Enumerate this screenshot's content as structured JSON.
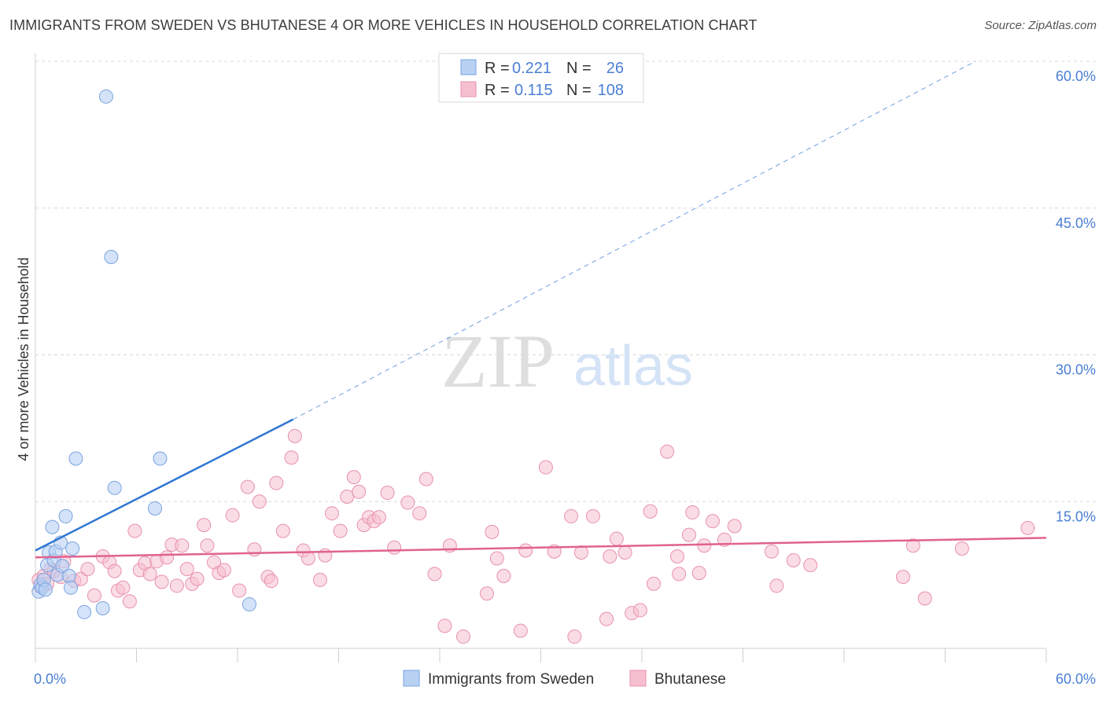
{
  "title": "IMMIGRANTS FROM SWEDEN VS BHUTANESE 4 OR MORE VEHICLES IN HOUSEHOLD CORRELATION CHART",
  "source": "Source: ZipAtlas.com",
  "watermark": {
    "zip": "ZIP",
    "atlas": "atlas"
  },
  "colors": {
    "sweden_fill": "#b8d1f3",
    "sweden_stroke": "#7aa3e0",
    "sweden_line": "#2f76d2",
    "bhutanese_fill": "#f6bfd0",
    "bhutanese_stroke": "#e891ad",
    "bhutanese_line": "#e0628f",
    "accent_text": "#4a7fd4",
    "grid": "#d8d8d8"
  },
  "legend_top": [
    {
      "r_label": "R =",
      "r_value": "0.221",
      "n_label": "N =",
      "n_value": "26"
    },
    {
      "r_label": "R =",
      "r_value": "0.115",
      "n_label": "N =",
      "n_value": "108"
    }
  ],
  "legend_bottom": [
    "Immigrants from Sweden",
    "Bhutanese"
  ],
  "chart_data": {
    "type": "scatter",
    "title": "IMMIGRANTS FROM SWEDEN VS BHUTANESE 4 OR MORE VEHICLES IN HOUSEHOLD CORRELATION CHART",
    "xlabel": "",
    "ylabel": "4 or more Vehicles in Household",
    "xlim": [
      0,
      60
    ],
    "ylim": [
      0,
      60
    ],
    "x_tick_labels": [
      "0.0%",
      "60.0%"
    ],
    "y_tick_values": [
      15,
      30,
      45,
      60
    ],
    "y_tick_labels": [
      "15.0%",
      "30.0%",
      "45.0%",
      "60.0%"
    ],
    "grid": true,
    "legend_position": "top-center",
    "series": [
      {
        "name": "Immigrants from Sweden",
        "R": 0.221,
        "N": 26,
        "points": [
          [
            0.2,
            5.8
          ],
          [
            0.3,
            6.5
          ],
          [
            0.4,
            6.2
          ],
          [
            0.5,
            7.0
          ],
          [
            0.6,
            6.0
          ],
          [
            0.7,
            8.5
          ],
          [
            0.8,
            9.8
          ],
          [
            1.0,
            12.4
          ],
          [
            1.1,
            9.0
          ],
          [
            1.2,
            9.9
          ],
          [
            1.3,
            7.5
          ],
          [
            1.5,
            10.8
          ],
          [
            1.6,
            8.4
          ],
          [
            1.8,
            13.5
          ],
          [
            2.0,
            7.4
          ],
          [
            2.1,
            6.2
          ],
          [
            2.2,
            10.2
          ],
          [
            2.4,
            19.4
          ],
          [
            2.9,
            3.7
          ],
          [
            4.0,
            4.1
          ],
          [
            4.2,
            56.4
          ],
          [
            4.5,
            40.0
          ],
          [
            4.7,
            16.4
          ],
          [
            7.1,
            14.3
          ],
          [
            7.4,
            19.4
          ],
          [
            12.7,
            4.5
          ]
        ],
        "trend": {
          "x1": 0,
          "y1": 10.0,
          "x2": 15.3,
          "y2": 23.4,
          "x_extend_to": 55.8,
          "y_extend_to": 60.0
        }
      },
      {
        "name": "Bhutanese",
        "R": 0.115,
        "N": 108,
        "points": [
          [
            0.2,
            7.0
          ],
          [
            0.3,
            6.3
          ],
          [
            0.5,
            7.4
          ],
          [
            0.7,
            6.6
          ],
          [
            0.9,
            8.1
          ],
          [
            1.1,
            7.9
          ],
          [
            1.5,
            7.3
          ],
          [
            1.7,
            8.9
          ],
          [
            2.3,
            6.9
          ],
          [
            2.7,
            7.1
          ],
          [
            3.1,
            8.1
          ],
          [
            3.5,
            5.4
          ],
          [
            4.0,
            9.4
          ],
          [
            4.4,
            8.8
          ],
          [
            4.7,
            7.9
          ],
          [
            4.9,
            5.9
          ],
          [
            5.2,
            6.2
          ],
          [
            5.6,
            4.8
          ],
          [
            5.9,
            12.0
          ],
          [
            6.2,
            8.0
          ],
          [
            6.5,
            8.7
          ],
          [
            6.8,
            7.6
          ],
          [
            7.2,
            8.9
          ],
          [
            7.5,
            6.8
          ],
          [
            7.8,
            9.3
          ],
          [
            8.1,
            10.6
          ],
          [
            8.4,
            6.4
          ],
          [
            8.7,
            10.5
          ],
          [
            9.0,
            8.1
          ],
          [
            9.3,
            6.6
          ],
          [
            9.6,
            7.1
          ],
          [
            10.0,
            12.6
          ],
          [
            10.2,
            10.5
          ],
          [
            10.6,
            8.8
          ],
          [
            10.9,
            7.7
          ],
          [
            11.2,
            8.0
          ],
          [
            11.7,
            13.6
          ],
          [
            12.1,
            5.9
          ],
          [
            12.6,
            16.5
          ],
          [
            13.0,
            10.1
          ],
          [
            13.3,
            15.0
          ],
          [
            13.8,
            7.3
          ],
          [
            14.0,
            6.9
          ],
          [
            14.3,
            16.9
          ],
          [
            14.7,
            12.0
          ],
          [
            15.2,
            19.5
          ],
          [
            15.4,
            21.7
          ],
          [
            15.9,
            10.0
          ],
          [
            16.2,
            9.2
          ],
          [
            16.9,
            7.0
          ],
          [
            17.2,
            9.5
          ],
          [
            17.6,
            13.8
          ],
          [
            18.1,
            12.0
          ],
          [
            18.5,
            15.5
          ],
          [
            18.9,
            17.5
          ],
          [
            19.2,
            16.0
          ],
          [
            19.5,
            12.6
          ],
          [
            19.8,
            13.4
          ],
          [
            20.1,
            13.0
          ],
          [
            20.4,
            13.4
          ],
          [
            20.9,
            15.9
          ],
          [
            21.3,
            10.3
          ],
          [
            22.1,
            14.9
          ],
          [
            22.8,
            13.8
          ],
          [
            23.2,
            17.3
          ],
          [
            23.7,
            7.6
          ],
          [
            24.3,
            2.3
          ],
          [
            24.6,
            10.5
          ],
          [
            25.4,
            1.2
          ],
          [
            26.8,
            5.6
          ],
          [
            27.1,
            11.9
          ],
          [
            27.4,
            9.2
          ],
          [
            27.8,
            7.4
          ],
          [
            28.8,
            1.8
          ],
          [
            29.1,
            10.0
          ],
          [
            30.3,
            18.5
          ],
          [
            30.8,
            9.9
          ],
          [
            31.8,
            13.5
          ],
          [
            32.0,
            1.2
          ],
          [
            32.4,
            9.8
          ],
          [
            33.1,
            13.5
          ],
          [
            33.9,
            3.0
          ],
          [
            34.1,
            9.4
          ],
          [
            34.5,
            11.2
          ],
          [
            35.0,
            9.8
          ],
          [
            35.4,
            3.6
          ],
          [
            35.9,
            3.9
          ],
          [
            36.5,
            14.0
          ],
          [
            36.7,
            6.6
          ],
          [
            37.5,
            20.1
          ],
          [
            38.1,
            9.4
          ],
          [
            38.2,
            7.6
          ],
          [
            38.8,
            11.6
          ],
          [
            39.0,
            13.9
          ],
          [
            39.4,
            7.7
          ],
          [
            39.7,
            10.5
          ],
          [
            40.2,
            13.0
          ],
          [
            40.9,
            11.1
          ],
          [
            41.5,
            12.5
          ],
          [
            43.7,
            9.9
          ],
          [
            44.0,
            6.4
          ],
          [
            45.0,
            9.0
          ],
          [
            46.0,
            8.5
          ],
          [
            51.5,
            7.3
          ],
          [
            52.1,
            10.5
          ],
          [
            52.8,
            5.1
          ],
          [
            55.0,
            10.2
          ],
          [
            58.9,
            12.3
          ]
        ],
        "trend": {
          "x1": 0,
          "y1": 9.3,
          "x2": 60,
          "y2": 11.3
        }
      }
    ]
  }
}
